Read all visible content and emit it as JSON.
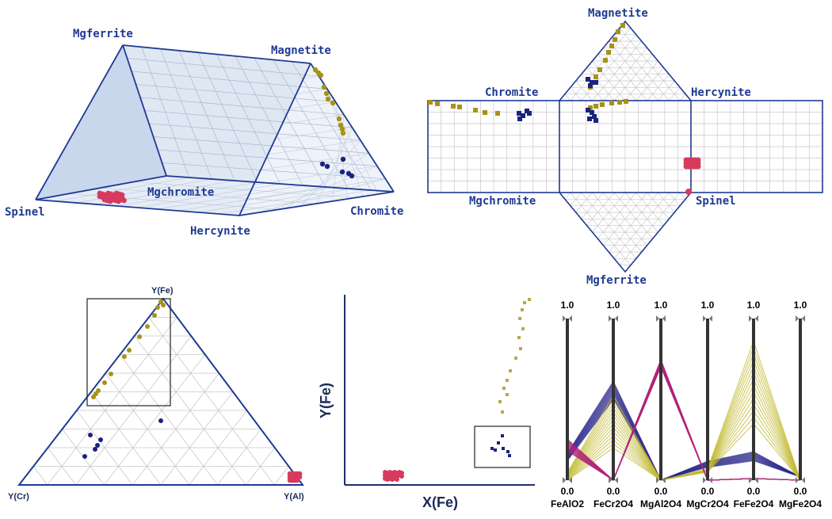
{
  "colors": {
    "blue": "#1f3a93",
    "navy": "#1a237e",
    "olive": "#a89314",
    "red": "#d63a5c",
    "magenta": "#b0237a",
    "yellow": "#c9c13a",
    "grid": "#c8c8c8"
  },
  "prism3d": {
    "labels": {
      "mgferrite": "Mgferrite",
      "magnetite": "Magnetite",
      "spinel": "Spinel",
      "mgchromite": "Mgchromite",
      "chromite": "Chromite",
      "hercynite": "Hercynite"
    }
  },
  "unfolded": {
    "labels": {
      "magnetite": "Magnetite",
      "chromite": "Chromite",
      "hercynite": "Hercynite",
      "mgchromite": "Mgchromite",
      "spinel": "Spinel",
      "mgferrite": "Mgferrite"
    }
  },
  "ternary": {
    "labels": {
      "top": "Y(Fe)",
      "left": "Y(Cr)",
      "right": "Y(Al)"
    }
  },
  "scatter": {
    "xlabel": "X(Fe)",
    "ylabel": "Y(Fe)"
  },
  "parallel": {
    "axes": [
      "FeAlO2",
      "FeCr2O4",
      "MgAl2O4",
      "MgCr2O4",
      "FeFe2O4",
      "MgFe2O4"
    ],
    "top_value": "1.0",
    "bottom_value": "0.0"
  }
}
